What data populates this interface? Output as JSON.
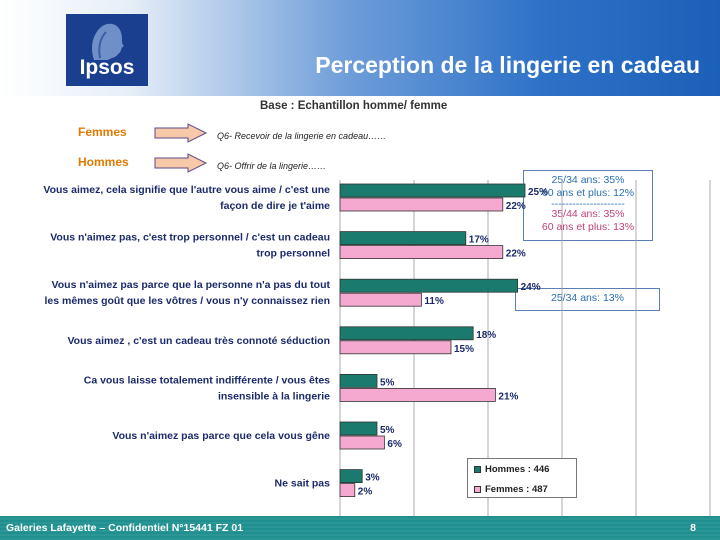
{
  "header": {
    "logo_text": "Ipsos",
    "title": "Perception de la lingerie en cadeau"
  },
  "subtitle": "Base : Echantillon homme/ femme",
  "genders": [
    {
      "label": "Femmes",
      "question": "Q6- Recevoir de la lingerie en cadeau……"
    },
    {
      "label": "Hommes",
      "question": "Q6- Offrir de la lingerie……"
    }
  ],
  "annotations": [
    {
      "lines": [
        {
          "text": "25/34 ans: 35%",
          "color": "teal"
        },
        {
          "text": "60 ans et plus: 12%",
          "color": "teal"
        },
        {
          "text": "---------------------",
          "color": "teal"
        },
        {
          "text": "35/44 ans: 35%",
          "color": "pink"
        },
        {
          "text": "60 ans et plus: 13%",
          "color": "pink"
        }
      ]
    },
    {
      "lines": [
        {
          "text": "25/34 ans: 13%",
          "color": "teal"
        }
      ]
    }
  ],
  "chart_data": {
    "type": "bar",
    "orientation": "horizontal",
    "categories": [
      [
        "Vous aimez, cela signifie que l'autre vous aime / c'est une",
        "façon de dire je t'aime"
      ],
      [
        "Vous n'aimez pas, c'est trop personnel /  c'est un cadeau",
        "trop personnel"
      ],
      [
        "Vous n'aimez pas parce que la personne n'a pas du tout",
        "les mêmes goût que les vôtres / vous n'y connaissez rien"
      ],
      [
        "Vous aimez , c'est un cadeau très connoté séduction"
      ],
      [
        "Ca vous laisse totalement indifférente / vous êtes",
        "insensible à la lingerie"
      ],
      [
        "Vous n'aimez pas parce que cela vous gêne"
      ],
      [
        "Ne sait pas"
      ]
    ],
    "series": [
      {
        "name": "Hommes : 446",
        "color": "#1a7a6e",
        "values": [
          25,
          17,
          24,
          18,
          5,
          5,
          3
        ]
      },
      {
        "name": "Femmes : 487",
        "color": "#f5a8d0",
        "values": [
          22,
          22,
          11,
          15,
          21,
          6,
          2
        ]
      }
    ],
    "value_suffix": "%",
    "xlim": [
      0,
      50
    ],
    "legend_position": "bottom-right"
  },
  "footer": {
    "text": "Galeries Lafayette – Confidentiel N°15441 FZ 01",
    "page": "8"
  }
}
